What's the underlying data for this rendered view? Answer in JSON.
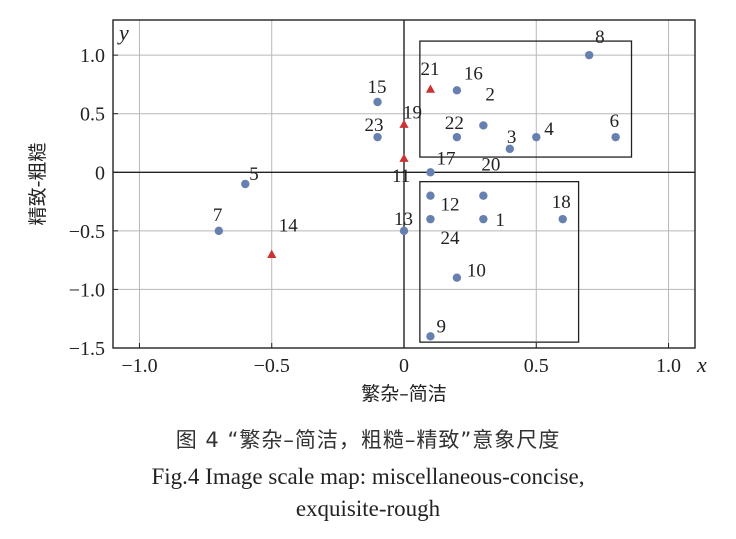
{
  "chart_data": {
    "type": "scatter",
    "xlabel": "繁杂–简洁",
    "ylabel": "精致-粗糙",
    "x_var": "x",
    "y_var": "y",
    "xlim": [
      -1.1,
      1.1
    ],
    "ylim": [
      -1.5,
      1.3
    ],
    "xticks": [
      -1.0,
      -0.5,
      0,
      0.5,
      1.0
    ],
    "xtick_labels": [
      "−1.0",
      "−0.5",
      "0",
      "0.5",
      "1.0"
    ],
    "yticks": [
      1.0,
      0.5,
      0,
      -0.5,
      -1.0,
      -1.5
    ],
    "ytick_labels": [
      "1.0",
      "0.5",
      "0",
      "−0.5",
      "−1.0",
      "−1.5"
    ],
    "grid": true,
    "colors": {
      "circle": "#6680b0",
      "triangle": "#cc3333"
    },
    "points": [
      {
        "label": "1",
        "x": 0.3,
        "y": -0.4,
        "marker": "circle"
      },
      {
        "label": "2",
        "x": 0.3,
        "y": 0.4,
        "marker": "circle"
      },
      {
        "label": "3",
        "x": 0.4,
        "y": 0.2,
        "marker": "circle"
      },
      {
        "label": "4",
        "x": 0.5,
        "y": 0.3,
        "marker": "circle"
      },
      {
        "label": "5",
        "x": -0.6,
        "y": -0.1,
        "marker": "circle"
      },
      {
        "label": "6",
        "x": 0.8,
        "y": 0.3,
        "marker": "circle"
      },
      {
        "label": "7",
        "x": -0.7,
        "y": -0.5,
        "marker": "circle"
      },
      {
        "label": "8",
        "x": 0.7,
        "y": 1.0,
        "marker": "circle"
      },
      {
        "label": "9",
        "x": 0.1,
        "y": -1.4,
        "marker": "circle"
      },
      {
        "label": "10",
        "x": 0.2,
        "y": -0.9,
        "marker": "circle"
      },
      {
        "label": "11",
        "x": 0.0,
        "y": 0.12,
        "marker": "triangle"
      },
      {
        "label": "12",
        "x": 0.1,
        "y": -0.2,
        "marker": "circle"
      },
      {
        "label": "13",
        "x": 0.0,
        "y": -0.5,
        "marker": "circle"
      },
      {
        "label": "14",
        "x": -0.5,
        "y": -0.7,
        "marker": "triangle"
      },
      {
        "label": "15",
        "x": -0.1,
        "y": 0.6,
        "marker": "circle"
      },
      {
        "label": "16",
        "x": 0.2,
        "y": 0.7,
        "marker": "circle"
      },
      {
        "label": "17",
        "x": 0.1,
        "y": 0.0,
        "marker": "circle"
      },
      {
        "label": "18",
        "x": 0.6,
        "y": -0.4,
        "marker": "circle"
      },
      {
        "label": "19",
        "x": 0.0,
        "y": 0.41,
        "marker": "triangle"
      },
      {
        "label": "20",
        "x": 0.3,
        "y": -0.2,
        "marker": "circle"
      },
      {
        "label": "21",
        "x": 0.1,
        "y": 0.71,
        "marker": "triangle"
      },
      {
        "label": "22",
        "x": 0.2,
        "y": 0.3,
        "marker": "circle"
      },
      {
        "label": "23",
        "x": -0.1,
        "y": 0.3,
        "marker": "circle"
      },
      {
        "label": "24",
        "x": 0.1,
        "y": -0.4,
        "marker": "circle"
      }
    ],
    "boxes": [
      {
        "x0": 0.06,
        "x1": 0.86,
        "y0": 0.13,
        "y1": 1.12
      },
      {
        "x0": 0.06,
        "x1": 0.66,
        "y0": -1.45,
        "y1": -0.08
      }
    ]
  },
  "caption": {
    "cn": "图 4  “繁杂–简洁，粗糙–精致”意象尺度",
    "en_line1": "Fig.4 Image scale map: miscellaneous-concise,",
    "en_line2": "exquisite-rough"
  }
}
